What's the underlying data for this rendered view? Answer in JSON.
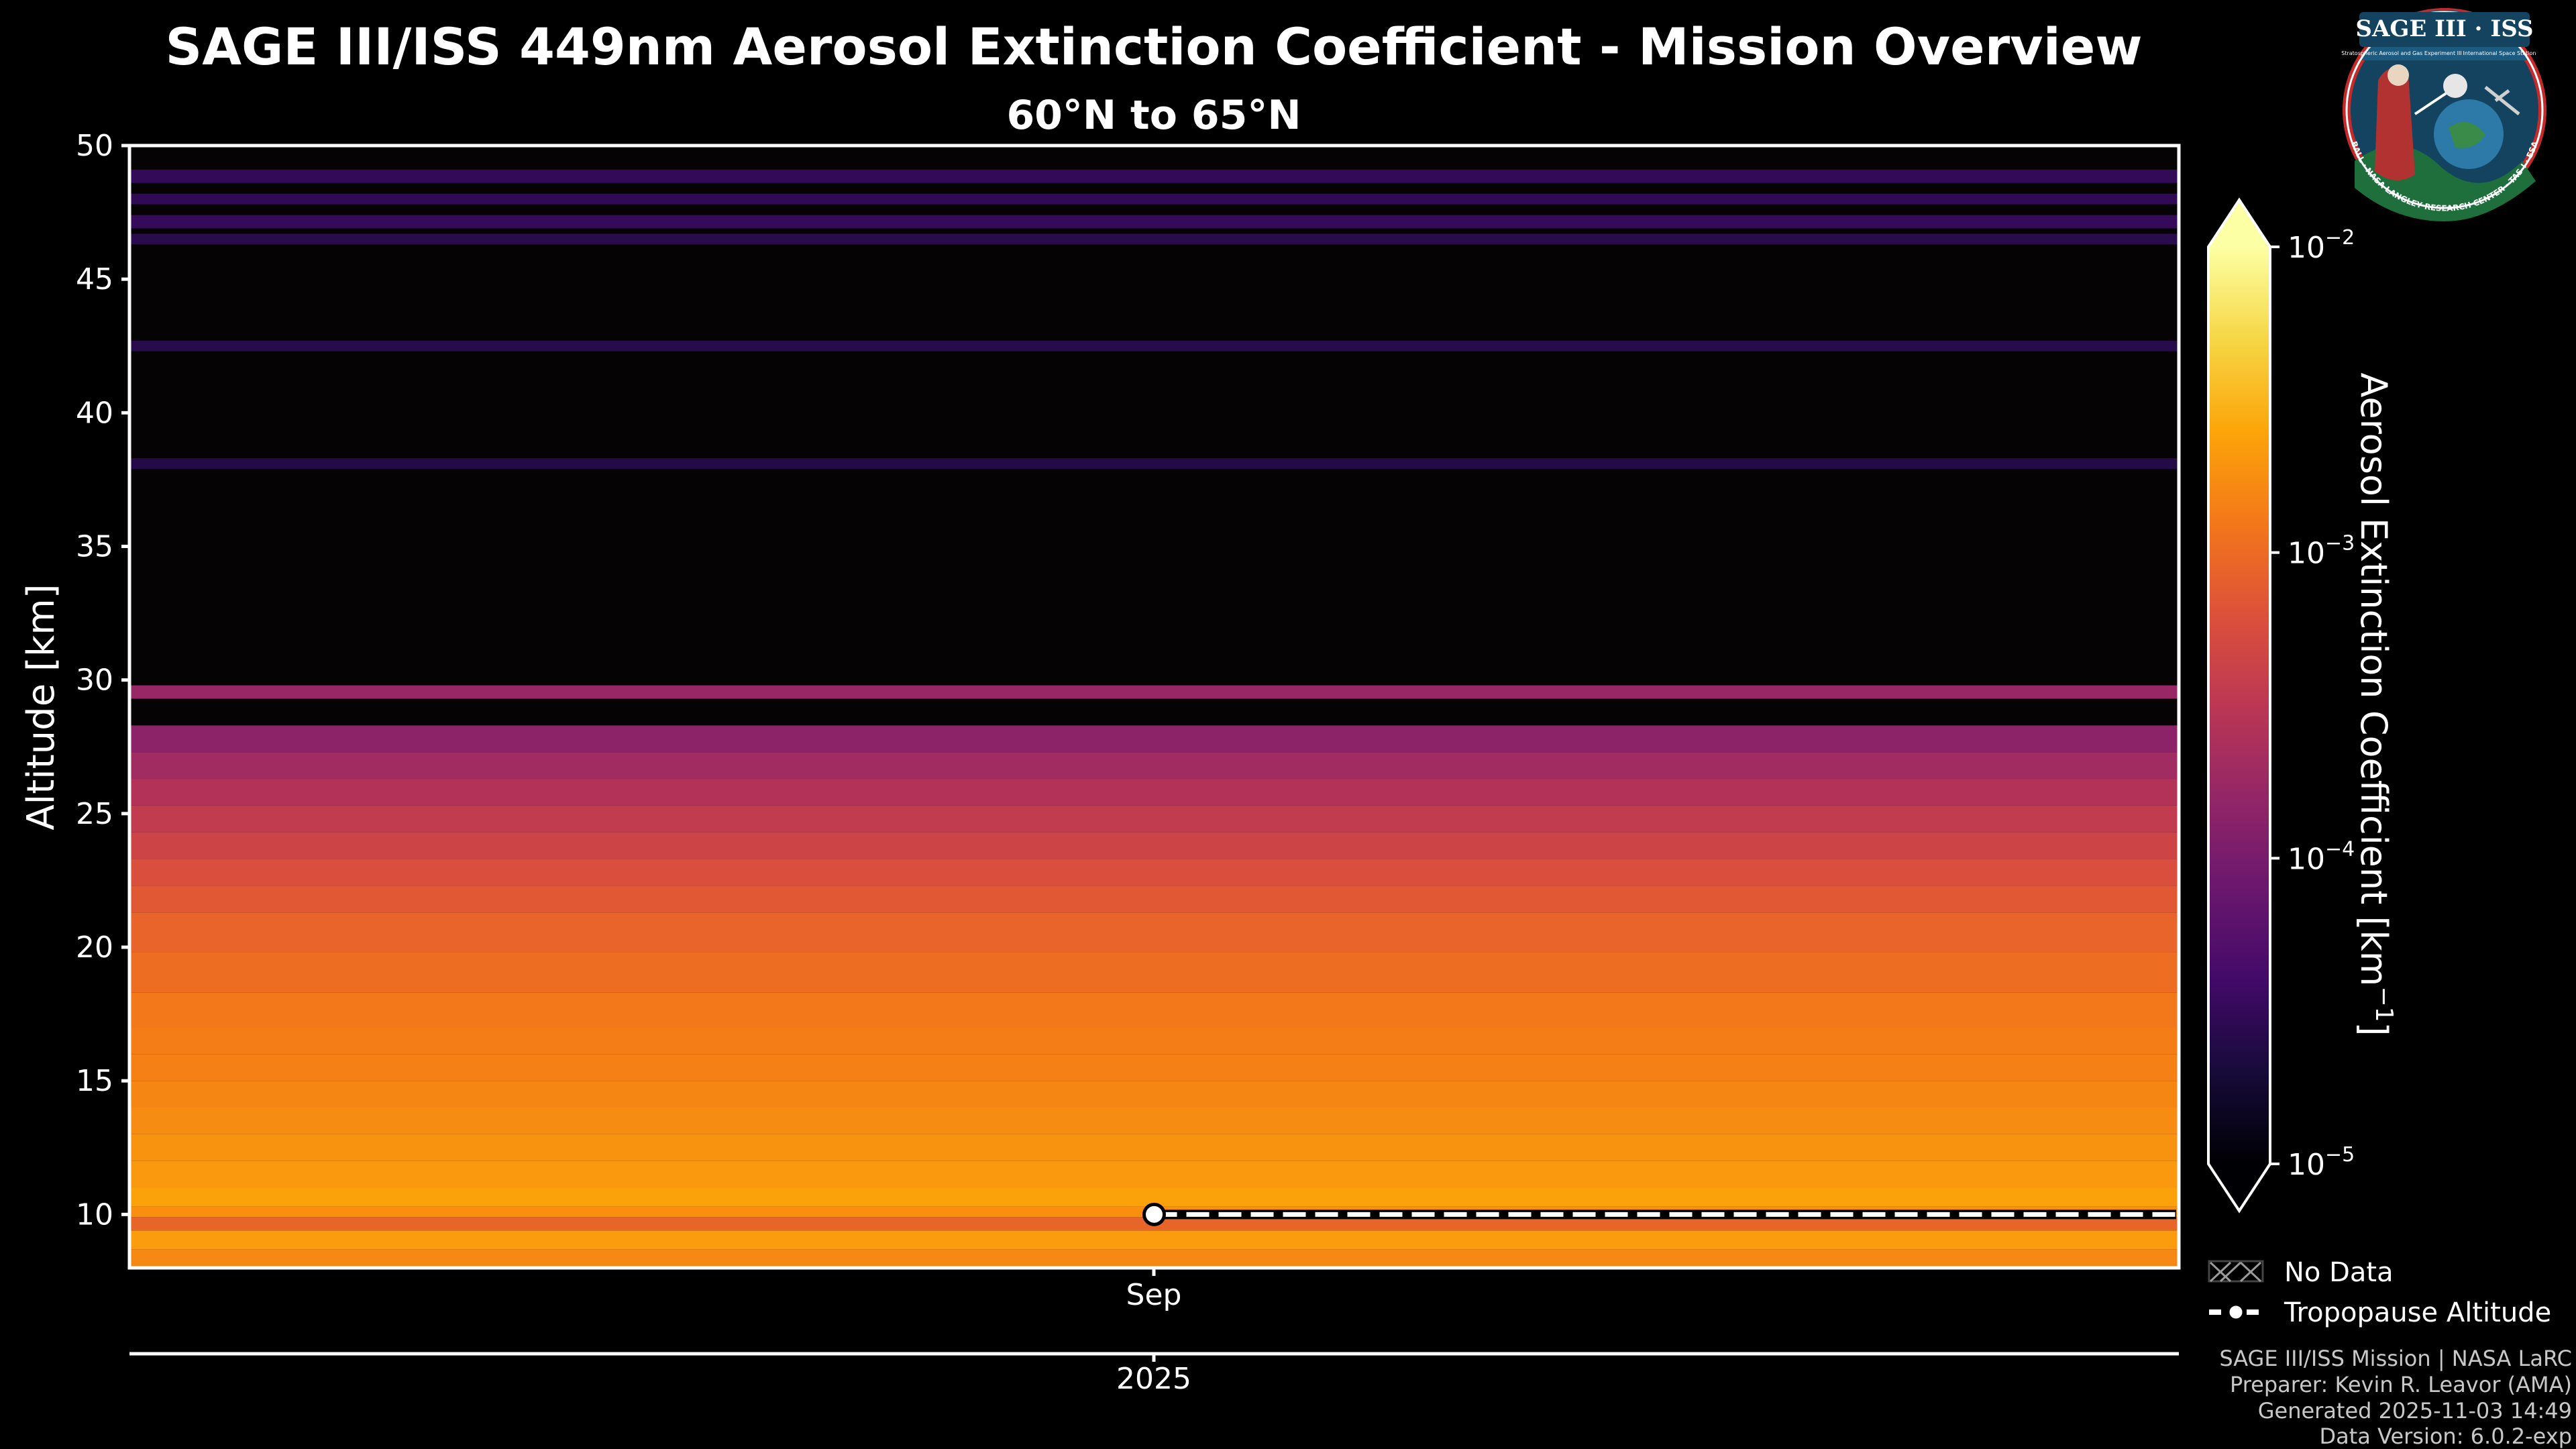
{
  "chart_data": {
    "type": "heatmap",
    "title": "SAGE III/ISS 449nm Aerosol Extinction Coefficient - Mission Overview",
    "subtitle": "60°N to 65°N",
    "ylabel": "Altitude [km]",
    "ylim": [
      8,
      50
    ],
    "yticks": [
      10,
      15,
      20,
      25,
      30,
      35,
      40,
      45,
      50
    ],
    "x_month_label": "Sep",
    "x_year_label": "2025",
    "colorbar": {
      "label": "Aerosol Extinction Coefficient [km",
      "label_sup": "−1",
      "label_close": "]",
      "scale": "log",
      "range": [
        1e-05,
        0.01
      ],
      "ticks": [
        {
          "base": "10",
          "exp": "−5",
          "value": 1e-05
        },
        {
          "base": "10",
          "exp": "−4",
          "value": 0.0001
        },
        {
          "base": "10",
          "exp": "−3",
          "value": 0.001
        },
        {
          "base": "10",
          "exp": "−2",
          "value": 0.01
        }
      ]
    },
    "profile": [
      {
        "alt": [
          8.0,
          8.7
        ],
        "value": 0.0016
      },
      {
        "alt": [
          8.7,
          9.4
        ],
        "value": 0.0022
      },
      {
        "alt": [
          9.4,
          9.9
        ],
        "value": 0.0009
      },
      {
        "alt": [
          9.9,
          10.3
        ],
        "value": 0.0018
      },
      {
        "alt": [
          10.3,
          11.0
        ],
        "value": 0.0024
      },
      {
        "alt": [
          11.0,
          12.0
        ],
        "value": 0.0021
      },
      {
        "alt": [
          12.0,
          13.0
        ],
        "value": 0.0019
      },
      {
        "alt": [
          13.0,
          14.0
        ],
        "value": 0.0017
      },
      {
        "alt": [
          14.0,
          15.0
        ],
        "value": 0.00155
      },
      {
        "alt": [
          15.0,
          16.0
        ],
        "value": 0.00145
      },
      {
        "alt": [
          16.0,
          17.0
        ],
        "value": 0.00135
      },
      {
        "alt": [
          17.0,
          18.3
        ],
        "value": 0.00125
      },
      {
        "alt": [
          18.3,
          19.8
        ],
        "value": 0.00105
      },
      {
        "alt": [
          19.8,
          21.3
        ],
        "value": 0.00088
      },
      {
        "alt": [
          21.3,
          22.3
        ],
        "value": 0.00072
      },
      {
        "alt": [
          22.3,
          23.3
        ],
        "value": 0.00058
      },
      {
        "alt": [
          23.3,
          24.3
        ],
        "value": 0.00045
      },
      {
        "alt": [
          24.3,
          25.3
        ],
        "value": 0.00036
      },
      {
        "alt": [
          25.3,
          26.3
        ],
        "value": 0.00027
      },
      {
        "alt": [
          26.3,
          27.3
        ],
        "value": 0.0002
      },
      {
        "alt": [
          27.3,
          28.3
        ],
        "value": 0.00014
      },
      {
        "alt": [
          29.3,
          29.8
        ],
        "value": 0.00017
      },
      {
        "alt": [
          37.9,
          38.3
        ],
        "value": 2.5e-05
      },
      {
        "alt": [
          42.3,
          42.7
        ],
        "value": 2.6e-05
      },
      {
        "alt": [
          46.3,
          46.7
        ],
        "value": 2.7e-05
      },
      {
        "alt": [
          46.9,
          47.4
        ],
        "value": 3.2e-05
      },
      {
        "alt": [
          47.8,
          48.2
        ],
        "value": 3e-05
      },
      {
        "alt": [
          48.6,
          49.1
        ],
        "value": 3.1e-05
      }
    ],
    "tropopause": {
      "start_fraction": 0.5,
      "altitude": 10.0
    }
  },
  "legend": {
    "no_data_label": "No Data",
    "tropopause_label": "Tropopause Altitude"
  },
  "logo": {
    "title": "SAGE III · ISS",
    "line_left": "Stratospheric Aerosol and Gas Experiment III",
    "line_right": "International Space Station",
    "ring_text": "BALL · NASA LANGLEY RESEARCH CENTER · TAS-I · ESA"
  },
  "footer": [
    "SAGE III/ISS Mission | NASA LaRC",
    "Preparer: Kevin R. Leavor (AMA)",
    "Generated 2025-11-03 14:49",
    "Data Version: 6.0.2-exp"
  ]
}
